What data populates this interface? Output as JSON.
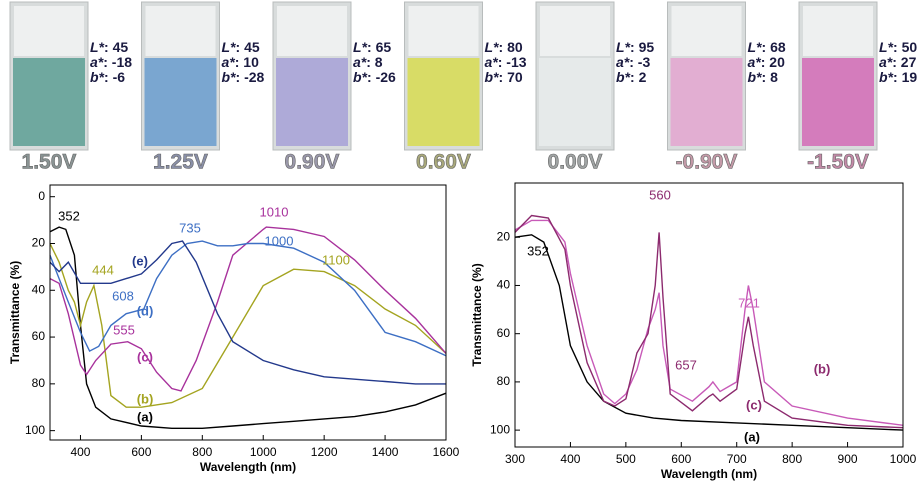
{
  "lab_labels": [
    "L*",
    "a*",
    "b*"
  ],
  "lab_sep": ":",
  "vials": [
    {
      "voltage": "1.50V",
      "lab": [
        45,
        -18,
        -6
      ],
      "color": "#6fa89f",
      "label_color": "#8a9494"
    },
    {
      "voltage": "1.25V",
      "lab": [
        45,
        10,
        -28
      ],
      "color": "#7aa6d0",
      "label_color": "#8a90a8"
    },
    {
      "voltage": "0.90V",
      "lab": [
        65,
        8,
        -26
      ],
      "color": "#aeaad8",
      "label_color": "#9a98aa"
    },
    {
      "voltage": "0.60V",
      "lab": [
        80,
        -13,
        70
      ],
      "color": "#d8dc66",
      "label_color": "#a8a87a"
    },
    {
      "voltage": "0.00V",
      "lab": [
        95,
        -3,
        2
      ],
      "color": "#e6eaea",
      "label_color": "#a0a4a4"
    },
    {
      "voltage": "-0.90V",
      "lab": [
        68,
        20,
        8
      ],
      "color": "#e2aed2",
      "label_color": "#c49aa8"
    },
    {
      "voltage": "-1.50V",
      "lab": [
        50,
        27,
        19
      ],
      "color": "#d47cbc",
      "label_color": "#c48aa8"
    }
  ],
  "chart_data": [
    {
      "type": "line",
      "xlabel": "Wavelength (nm)",
      "ylabel": "Transmittance (%)",
      "xlim": [
        300,
        1600
      ],
      "xticks": [
        400,
        600,
        800,
        1000,
        1200,
        1400,
        1600
      ],
      "ylim": [
        104,
        -5
      ],
      "yticks": [
        0,
        20,
        40,
        60,
        80,
        100
      ],
      "series": [
        {
          "color": "#000000",
          "x": [
            300,
            330,
            352,
            380,
            400,
            420,
            450,
            500,
            600,
            700,
            800,
            900,
            1000,
            1100,
            1200,
            1300,
            1400,
            1500,
            1600
          ],
          "values": [
            15,
            13,
            14,
            25,
            55,
            80,
            90,
            95,
            98,
            99,
            99,
            98,
            97,
            96,
            95,
            94,
            92,
            89,
            84
          ]
        },
        {
          "color": "#a4a420",
          "x": [
            300,
            330,
            360,
            380,
            400,
            420,
            444,
            470,
            500,
            550,
            600,
            700,
            800,
            900,
            1000,
            1100,
            1200,
            1300,
            1400,
            1500,
            1600
          ],
          "values": [
            20,
            28,
            40,
            45,
            55,
            45,
            38,
            55,
            85,
            90,
            90,
            88,
            82,
            60,
            38,
            31,
            32,
            38,
            48,
            55,
            67
          ]
        },
        {
          "color": "#a8329c",
          "x": [
            300,
            330,
            360,
            400,
            420,
            450,
            500,
            555,
            600,
            650,
            700,
            730,
            780,
            850,
            900,
            1000,
            1010,
            1100,
            1200,
            1300,
            1400,
            1500,
            1600
          ],
          "values": [
            35,
            37,
            50,
            72,
            76,
            70,
            63,
            62,
            65,
            75,
            82,
            83,
            70,
            45,
            25,
            14,
            13,
            14,
            17,
            27,
            40,
            52,
            67
          ]
        },
        {
          "color": "#3d6fc4",
          "x": [
            300,
            330,
            360,
            400,
            430,
            460,
            500,
            550,
            608,
            650,
            700,
            750,
            800,
            850,
            900,
            950,
            1000,
            1100,
            1200,
            1300,
            1400,
            1450,
            1500,
            1600
          ],
          "values": [
            25,
            35,
            45,
            58,
            66,
            64,
            55,
            50,
            48,
            35,
            25,
            20,
            19,
            21,
            21,
            20,
            20,
            22,
            28,
            40,
            58,
            60,
            62,
            68
          ]
        },
        {
          "color": "#23398c",
          "x": [
            300,
            330,
            360,
            400,
            450,
            500,
            600,
            650,
            700,
            735,
            780,
            850,
            900,
            1000,
            1100,
            1200,
            1300,
            1400,
            1500,
            1600
          ],
          "values": [
            28,
            32,
            28,
            37,
            37,
            37,
            33,
            27,
            20,
            19,
            28,
            50,
            62,
            70,
            74,
            77,
            78,
            79,
            80,
            80
          ]
        }
      ],
      "annotations": [
        {
          "text": "352",
          "color": "#000000"
        },
        {
          "text": "444",
          "color": "#a4a420"
        },
        {
          "text": "555",
          "color": "#a8329c"
        },
        {
          "text": "608",
          "color": "#3d6fc4"
        },
        {
          "text": "735",
          "color": "#3d6fc4"
        },
        {
          "text": "1010",
          "color": "#a8329c"
        },
        {
          "text": "1000",
          "color": "#3d6fc4"
        },
        {
          "text": "1100",
          "color": "#a4a420"
        },
        {
          "text": "(e)",
          "color": "#23398c"
        },
        {
          "text": "(d)",
          "color": "#3d6fc4"
        },
        {
          "text": "(c)",
          "color": "#a8329c"
        },
        {
          "text": "(b)",
          "color": "#a4a420"
        },
        {
          "text": "(a)",
          "color": "#000000"
        }
      ]
    },
    {
      "type": "line",
      "xlabel": "Wavelength (nm)",
      "ylabel": "Transmittance (%)",
      "xlim": [
        300,
        1000
      ],
      "xticks": [
        300,
        400,
        500,
        600,
        700,
        800,
        900,
        1000
      ],
      "ylim": [
        107,
        -2.5
      ],
      "yticks": [
        20,
        40,
        60,
        80,
        100
      ],
      "series": [
        {
          "color": "#000000",
          "x": [
            300,
            330,
            352,
            380,
            400,
            430,
            460,
            500,
            550,
            600,
            700,
            800,
            900,
            1000
          ],
          "values": [
            20,
            19,
            22,
            40,
            65,
            80,
            88,
            93,
            95,
            96,
            97,
            98,
            99,
            100
          ]
        },
        {
          "color": "#c85ab8",
          "x": [
            300,
            330,
            360,
            390,
            400,
            430,
            460,
            480,
            500,
            520,
            540,
            553,
            560,
            567,
            580,
            620,
            650,
            657,
            670,
            700,
            715,
            721,
            730,
            750,
            800,
            900,
            1000
          ],
          "values": [
            17,
            13,
            13,
            22,
            35,
            65,
            85,
            89,
            85,
            75,
            58,
            50,
            43,
            65,
            83,
            88,
            82,
            80,
            84,
            80,
            50,
            40,
            50,
            80,
            90,
            95,
            98
          ]
        },
        {
          "color": "#8c2a6e",
          "x": [
            300,
            330,
            360,
            390,
            400,
            430,
            460,
            480,
            500,
            520,
            540,
            553,
            560,
            567,
            580,
            620,
            650,
            657,
            670,
            700,
            715,
            721,
            730,
            750,
            800,
            900,
            1000
          ],
          "values": [
            18,
            11,
            12,
            25,
            40,
            72,
            88,
            90,
            87,
            68,
            60,
            40,
            18,
            45,
            85,
            92,
            86,
            85,
            88,
            83,
            60,
            53,
            65,
            88,
            95,
            98,
            99
          ]
        }
      ],
      "annotations": [
        {
          "text": "352",
          "color": "#000000"
        },
        {
          "text": "560",
          "color": "#8c2a6e"
        },
        {
          "text": "657",
          "color": "#8c2a6e"
        },
        {
          "text": "721",
          "color": "#c85ab8"
        },
        {
          "text": "(b)",
          "color": "#8c2a6e"
        },
        {
          "text": "(c)",
          "color": "#8c2a6e"
        },
        {
          "text": "(a)",
          "color": "#000000"
        }
      ]
    }
  ]
}
